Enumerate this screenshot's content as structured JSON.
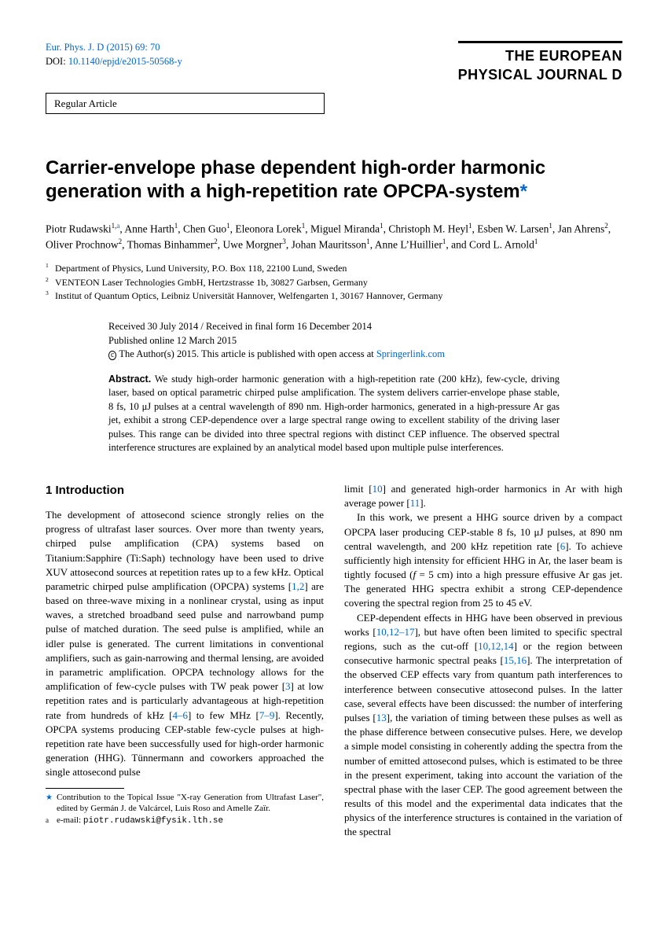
{
  "header": {
    "journal_ref": "Eur. Phys. J. D (2015) 69: 70",
    "doi_label": "DOI: ",
    "doi": "10.1140/epjd/e2015-50568-y",
    "journal_name_line1": "THE EUROPEAN",
    "journal_name_line2": "PHYSICAL JOURNAL D",
    "article_type": "Regular Article"
  },
  "title": "Carrier-envelope phase dependent high-order harmonic generation with a high-repetition rate OPCPA-system",
  "authors_html": "Piotr Rudawski<sup>1,a</sup>, Anne Harth<sup>1</sup>, Chen Guo<sup>1</sup>, Eleonora Lorek<sup>1</sup>, Miguel Miranda<sup>1</sup>, Christoph M. Heyl<sup>1</sup>, Esben W. Larsen<sup>1</sup>, Jan Ahrens<sup>2</sup>, Oliver Prochnow<sup>2</sup>, Thomas Binhammer<sup>2</sup>, Uwe Morgner<sup>3</sup>, Johan Mauritsson<sup>1</sup>, Anne L'Huillier<sup>1</sup>, and Cord L. Arnold<sup>1</sup>",
  "affiliations": [
    {
      "num": "1",
      "text": "Department of Physics, Lund University, P.O. Box 118, 22100 Lund, Sweden"
    },
    {
      "num": "2",
      "text": "VENTEON Laser Technologies GmbH, Hertzstrasse 1b, 30827 Garbsen, Germany"
    },
    {
      "num": "3",
      "text": "Institut of Quantum Optics, Leibniz Universität Hannover, Welfengarten 1, 30167 Hannover, Germany"
    }
  ],
  "dates": {
    "received": "Received 30 July 2014 / Received in final form 16 December 2014",
    "published": "Published online 12 March 2015",
    "copyright_prefix": "The Author(s) 2015. This article is published with open access at ",
    "copyright_link": "Springerlink.com"
  },
  "abstract": {
    "label": "Abstract.",
    "text": "We study high-order harmonic generation with a high-repetition rate (200 kHz), few-cycle, driving laser, based on optical parametric chirped pulse amplification. The system delivers carrier-envelope phase stable, 8 fs, 10 μJ pulses at a central wavelength of 890 nm. High-order harmonics, generated in a high-pressure Ar gas jet, exhibit a strong CEP-dependence over a large spectral range owing to excellent stability of the driving laser pulses. This range can be divided into three spectral regions with distinct CEP influence. The observed spectral interference structures are explained by an analytical model based upon multiple pulse interferences."
  },
  "intro": {
    "heading": "1 Introduction",
    "col1_p1": "The development of attosecond science strongly relies on the progress of ultrafast laser sources. Over more than twenty years, chirped pulse amplification (CPA) systems based on Titanium:Sapphire (Ti:Saph) technology have been used to drive XUV attosecond sources at repetition rates up to a few kHz. Optical parametric chirped pulse amplification (OPCPA) systems [1,2] are based on three-wave mixing in a nonlinear crystal, using as input waves, a stretched broadband seed pulse and narrowband pump pulse of matched duration. The seed pulse is amplified, while an idler pulse is generated. The current limitations in conventional amplifiers, such as gain-narrowing and thermal lensing, are avoided in parametric amplification. OPCPA technology allows for the amplification of few-cycle pulses with TW peak power [3] at low repetition rates and is particularly advantageous at high-repetition rate from hundreds of kHz [4–6] to few MHz [7–9]. Recently, OPCPA systems producing CEP-stable few-cycle pulses at high-repetition rate have been successfully used for high-order harmonic generation (HHG). Tünnermann and coworkers approached the single attosecond pulse",
    "col2_p1": "limit [10] and generated high-order harmonics in Ar with high average power [11].",
    "col2_p2": "In this work, we present a HHG source driven by a compact OPCPA laser producing CEP-stable 8 fs, 10 μJ pulses, at 890 nm central wavelength, and 200 kHz repetition rate [6]. To achieve sufficiently high intensity for efficient HHG in Ar, the laser beam is tightly focused (f = 5 cm) into a high pressure effusive Ar gas jet. The generated HHG spectra exhibit a strong CEP-dependence covering the spectral region from 25 to 45 eV.",
    "col2_p3": "CEP-dependent effects in HHG have been observed in previous works [10,12–17], but have often been limited to specific spectral regions, such as the cut-off [10,12,14] or the region between consecutive harmonic spectral peaks [15,16]. The interpretation of the observed CEP effects vary from quantum path interferences to interference between consecutive attosecond pulses. In the latter case, several effects have been discussed: the number of interfering pulses [13], the variation of timing between these pulses as well as the phase difference between consecutive pulses. Here, we develop a simple model consisting in coherently adding the spectra from the number of emitted attosecond pulses, which is estimated to be three in the present experiment, taking into account the variation of the spectral phase with the laser CEP. The good agreement between the results of this model and the experimental data indicates that the physics of the interference structures is contained in the variation of the spectral"
  },
  "footnotes": {
    "star": "Contribution to the Topical Issue \"X-ray Generation from Ultrafast Laser\", edited by Germán J. de Valcárcel, Luis Roso and Amelle Zaïr.",
    "email_label": "e-mail: ",
    "email": "piotr.rudawski@fysik.lth.se"
  },
  "refs": {
    "r1_2": "1,2",
    "r3": "3",
    "r4_6": "4–6",
    "r6": "6",
    "r7_9": "7–9",
    "r10": "10",
    "r11": "11",
    "r10_12_17": "10,12–17",
    "r10_12_14": "10,12,14",
    "r13": "13",
    "r15_16": "15,16"
  }
}
